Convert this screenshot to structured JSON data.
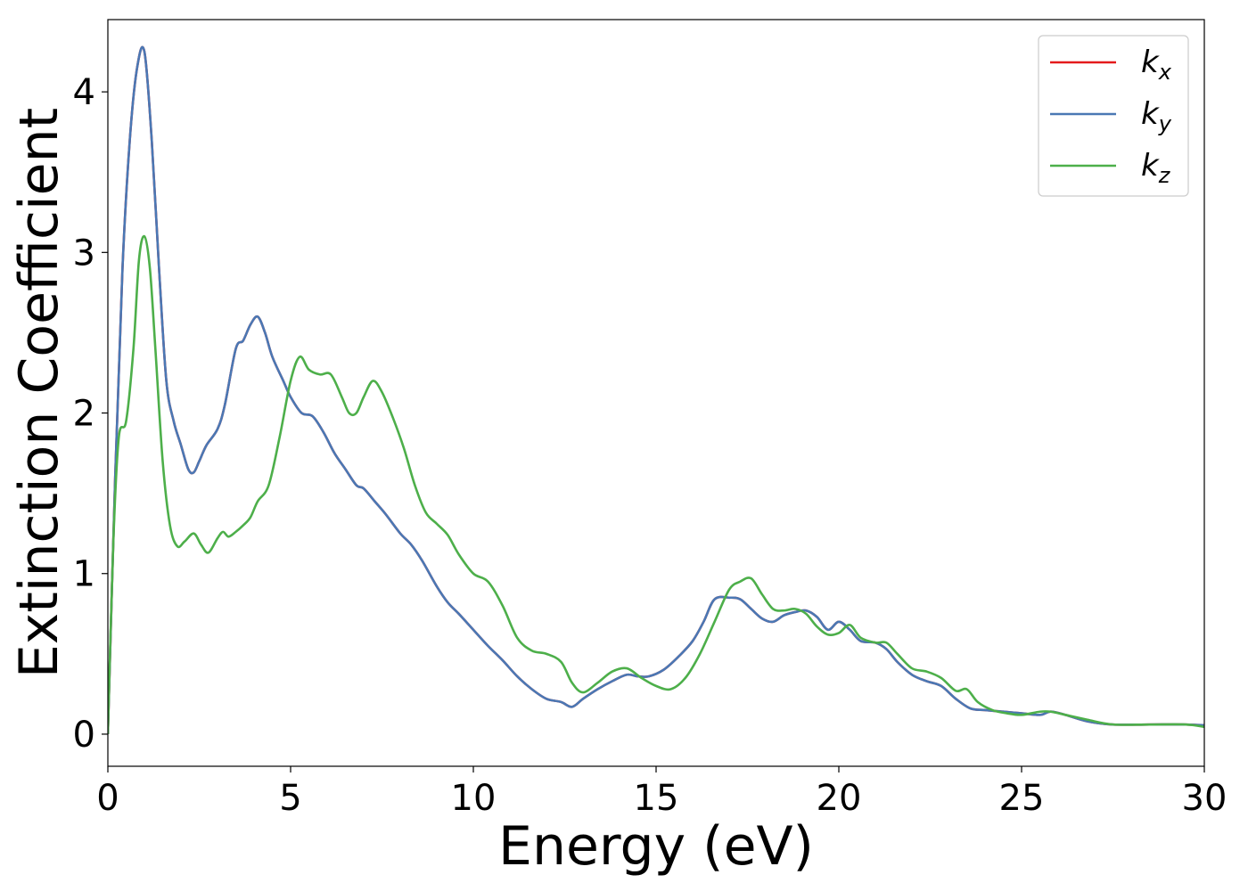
{
  "chart_data": {
    "type": "line",
    "xlabel": "Energy (eV)",
    "ylabel": "Extinction Coefficient",
    "xlim": [
      0,
      30
    ],
    "ylim": [
      -0.2,
      4.45
    ],
    "xticks": [
      0,
      5,
      10,
      15,
      20,
      25,
      30
    ],
    "xtick_labels": [
      "0",
      "5",
      "10",
      "15",
      "20",
      "25",
      "30"
    ],
    "yticks": [
      0,
      1,
      2,
      3,
      4
    ],
    "ytick_labels": [
      "0",
      "1",
      "2",
      "3",
      "4"
    ],
    "grid": false,
    "legend_position": "top-right",
    "series": [
      {
        "name": "kx",
        "legend_base": "k",
        "legend_sub": "x",
        "color": "#e41a1c",
        "x": [
          0,
          0.2,
          0.4,
          0.6,
          0.8,
          1.0,
          1.2,
          1.4,
          1.6,
          1.8,
          2.0,
          2.2,
          2.35,
          2.5,
          2.7,
          3.0,
          3.2,
          3.5,
          3.7,
          3.9,
          4.1,
          4.3,
          4.5,
          4.8,
          5.0,
          5.3,
          5.6,
          5.9,
          6.2,
          6.5,
          6.8,
          7.0,
          7.3,
          7.6,
          8.0,
          8.3,
          8.6,
          9.0,
          9.3,
          9.6,
          10.0,
          10.4,
          10.8,
          11.2,
          11.6,
          12.0,
          12.4,
          12.7,
          13.0,
          13.4,
          13.8,
          14.2,
          14.5,
          14.8,
          15.2,
          15.6,
          16.0,
          16.3,
          16.6,
          17.0,
          17.3,
          17.6,
          17.9,
          18.2,
          18.5,
          18.8,
          19.1,
          19.4,
          19.7,
          20.0,
          20.3,
          20.6,
          21.0,
          21.3,
          21.6,
          22.0,
          22.4,
          22.8,
          23.2,
          23.6,
          24.0,
          24.5,
          25.0,
          25.5,
          25.8,
          26.2,
          26.8,
          27.5,
          28.5,
          29.5,
          30.0
        ],
        "y": [
          0.0,
          1.6,
          2.9,
          3.7,
          4.15,
          4.25,
          3.7,
          2.9,
          2.2,
          1.95,
          1.8,
          1.65,
          1.63,
          1.7,
          1.8,
          1.9,
          2.05,
          2.4,
          2.45,
          2.55,
          2.6,
          2.5,
          2.35,
          2.2,
          2.1,
          2.0,
          1.98,
          1.88,
          1.75,
          1.65,
          1.55,
          1.53,
          1.45,
          1.37,
          1.25,
          1.18,
          1.08,
          0.92,
          0.82,
          0.75,
          0.65,
          0.55,
          0.46,
          0.36,
          0.28,
          0.22,
          0.2,
          0.17,
          0.22,
          0.28,
          0.33,
          0.37,
          0.36,
          0.36,
          0.4,
          0.48,
          0.58,
          0.7,
          0.84,
          0.85,
          0.84,
          0.78,
          0.72,
          0.7,
          0.74,
          0.76,
          0.77,
          0.73,
          0.65,
          0.7,
          0.65,
          0.58,
          0.57,
          0.53,
          0.45,
          0.37,
          0.33,
          0.3,
          0.22,
          0.16,
          0.15,
          0.14,
          0.13,
          0.12,
          0.14,
          0.12,
          0.08,
          0.06,
          0.06,
          0.06,
          0.055
        ]
      },
      {
        "name": "ky",
        "legend_base": "k",
        "legend_sub": "y",
        "color": "#4a78b4",
        "x": [
          0,
          0.2,
          0.4,
          0.6,
          0.8,
          1.0,
          1.2,
          1.4,
          1.6,
          1.8,
          2.0,
          2.2,
          2.35,
          2.5,
          2.7,
          3.0,
          3.2,
          3.5,
          3.7,
          3.9,
          4.1,
          4.3,
          4.5,
          4.8,
          5.0,
          5.3,
          5.6,
          5.9,
          6.2,
          6.5,
          6.8,
          7.0,
          7.3,
          7.6,
          8.0,
          8.3,
          8.6,
          9.0,
          9.3,
          9.6,
          10.0,
          10.4,
          10.8,
          11.2,
          11.6,
          12.0,
          12.4,
          12.7,
          13.0,
          13.4,
          13.8,
          14.2,
          14.5,
          14.8,
          15.2,
          15.6,
          16.0,
          16.3,
          16.6,
          17.0,
          17.3,
          17.6,
          17.9,
          18.2,
          18.5,
          18.8,
          19.1,
          19.4,
          19.7,
          20.0,
          20.3,
          20.6,
          21.0,
          21.3,
          21.6,
          22.0,
          22.4,
          22.8,
          23.2,
          23.6,
          24.0,
          24.5,
          25.0,
          25.5,
          25.8,
          26.2,
          26.8,
          27.5,
          28.5,
          29.5,
          30.0
        ],
        "y": [
          0.0,
          1.6,
          2.9,
          3.7,
          4.15,
          4.25,
          3.7,
          2.9,
          2.2,
          1.95,
          1.8,
          1.65,
          1.63,
          1.7,
          1.8,
          1.9,
          2.05,
          2.4,
          2.45,
          2.55,
          2.6,
          2.5,
          2.35,
          2.2,
          2.1,
          2.0,
          1.98,
          1.88,
          1.75,
          1.65,
          1.55,
          1.53,
          1.45,
          1.37,
          1.25,
          1.18,
          1.08,
          0.92,
          0.82,
          0.75,
          0.65,
          0.55,
          0.46,
          0.36,
          0.28,
          0.22,
          0.2,
          0.17,
          0.22,
          0.28,
          0.33,
          0.37,
          0.36,
          0.36,
          0.4,
          0.48,
          0.58,
          0.7,
          0.84,
          0.85,
          0.84,
          0.78,
          0.72,
          0.7,
          0.74,
          0.76,
          0.77,
          0.73,
          0.65,
          0.7,
          0.65,
          0.58,
          0.57,
          0.53,
          0.45,
          0.37,
          0.33,
          0.3,
          0.22,
          0.16,
          0.15,
          0.14,
          0.13,
          0.12,
          0.14,
          0.12,
          0.08,
          0.06,
          0.06,
          0.06,
          0.055
        ]
      },
      {
        "name": "kz",
        "legend_base": "k",
        "legend_sub": "z",
        "color": "#4daf4a",
        "x": [
          0,
          0.15,
          0.3,
          0.5,
          0.7,
          0.85,
          1.0,
          1.15,
          1.3,
          1.5,
          1.7,
          1.9,
          2.1,
          2.35,
          2.55,
          2.75,
          3.0,
          3.15,
          3.3,
          3.5,
          3.7,
          3.9,
          4.1,
          4.4,
          4.7,
          5.0,
          5.25,
          5.5,
          5.8,
          6.1,
          6.4,
          6.6,
          6.8,
          7.0,
          7.25,
          7.5,
          7.8,
          8.1,
          8.4,
          8.7,
          9.0,
          9.3,
          9.6,
          10.0,
          10.4,
          10.8,
          11.2,
          11.6,
          12.0,
          12.4,
          12.7,
          13.0,
          13.4,
          13.8,
          14.2,
          14.6,
          15.0,
          15.4,
          15.8,
          16.2,
          16.6,
          17.0,
          17.3,
          17.6,
          17.9,
          18.2,
          18.5,
          18.8,
          19.1,
          19.4,
          19.7,
          20.0,
          20.3,
          20.6,
          21.0,
          21.3,
          21.6,
          22.0,
          22.4,
          22.8,
          23.2,
          23.5,
          23.8,
          24.2,
          24.6,
          25.0,
          25.5,
          25.8,
          26.2,
          26.8,
          27.5,
          28.5,
          29.5,
          30.0
        ],
        "y": [
          0.0,
          1.2,
          1.85,
          1.95,
          2.4,
          2.95,
          3.1,
          2.9,
          2.4,
          1.7,
          1.3,
          1.17,
          1.2,
          1.25,
          1.18,
          1.13,
          1.22,
          1.26,
          1.23,
          1.26,
          1.3,
          1.35,
          1.45,
          1.55,
          1.85,
          2.2,
          2.35,
          2.27,
          2.24,
          2.24,
          2.1,
          2.0,
          2.0,
          2.1,
          2.2,
          2.13,
          1.97,
          1.78,
          1.55,
          1.38,
          1.31,
          1.24,
          1.12,
          1.0,
          0.95,
          0.8,
          0.6,
          0.52,
          0.5,
          0.45,
          0.32,
          0.26,
          0.32,
          0.39,
          0.41,
          0.35,
          0.3,
          0.28,
          0.35,
          0.5,
          0.7,
          0.9,
          0.95,
          0.97,
          0.87,
          0.78,
          0.77,
          0.78,
          0.75,
          0.67,
          0.62,
          0.63,
          0.68,
          0.6,
          0.57,
          0.57,
          0.5,
          0.41,
          0.39,
          0.35,
          0.27,
          0.28,
          0.2,
          0.15,
          0.13,
          0.12,
          0.14,
          0.14,
          0.12,
          0.09,
          0.06,
          0.06,
          0.06,
          0.045
        ]
      }
    ]
  }
}
